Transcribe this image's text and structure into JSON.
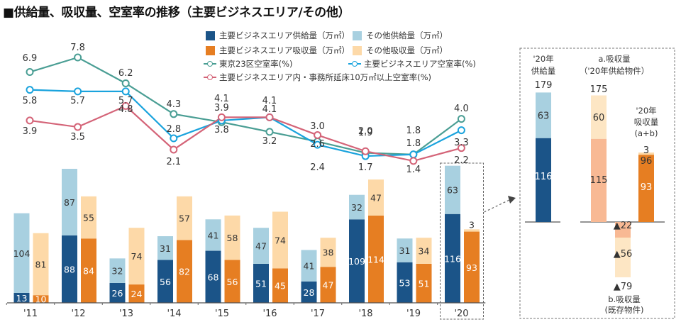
{
  "title": "■供給量、吸収量、空室率の推移（主要ビジネスエリア/その他）",
  "colors": {
    "main_supply": "#1b5488",
    "other_supply": "#a8d0e0",
    "main_absorb": "#e67e22",
    "other_absorb": "#fdd9a8",
    "tokyo23_vacancy": "#4a9e94",
    "main_vacancy": "#1aa3dd",
    "main_large_vacancy": "#d46478",
    "a_main_absorb": "#f8b994",
    "b_light": "#fde6c4"
  },
  "legend": {
    "main_supply": "主要ビジネスエリア供給量（万㎡）",
    "other_supply": "その他供給量（万㎡）",
    "main_absorb": "主要ビジネスエリア吸収量（万㎡）",
    "other_absorb": "その他吸収量（万㎡）",
    "tokyo23_vacancy": "東京23区空室率(%)",
    "main_vacancy": "主要ビジネスエリア空室率(%)",
    "main_large_vacancy": "主要ビジネスエリア内・事務所延床10万㎡以上空室率(%)"
  },
  "chart_data": [
    {
      "type": "bar",
      "subtype": "stacked-grouped",
      "categories": [
        "'11",
        "'12",
        "'13",
        "'14",
        "'15",
        "'16",
        "'17",
        "'18",
        "'19",
        "'20"
      ],
      "series": [
        {
          "name": "主要ビジネスエリア供給量（万㎡）",
          "stack": "supply",
          "values": [
            13,
            88,
            26,
            56,
            68,
            51,
            28,
            109,
            53,
            116
          ]
        },
        {
          "name": "その他供給量（万㎡）",
          "stack": "supply",
          "values": [
            104,
            87,
            32,
            31,
            41,
            47,
            41,
            32,
            31,
            63
          ]
        },
        {
          "name": "主要ビジネスエリア吸収量（万㎡）",
          "stack": "absorb",
          "values": [
            10,
            84,
            24,
            82,
            56,
            45,
            47,
            114,
            51,
            93
          ]
        },
        {
          "name": "その他吸収量（万㎡）",
          "stack": "absorb",
          "values": [
            81,
            55,
            74,
            57,
            58,
            74,
            38,
            47,
            34,
            3
          ]
        }
      ],
      "ylim": [
        0,
        180
      ],
      "highlight_category": "'20"
    },
    {
      "type": "line",
      "categories": [
        "'11",
        "'12",
        "'13",
        "'14",
        "'15",
        "'16",
        "'17",
        "'18",
        "'19",
        "'20"
      ],
      "series": [
        {
          "name": "東京23区空室率(%)",
          "values": [
            6.9,
            7.8,
            6.2,
            4.3,
            3.8,
            3.2,
            2.6,
            1.9,
            1.8,
            4.0
          ]
        },
        {
          "name": "主要ビジネスエリア空室率(%)",
          "values": [
            5.8,
            5.7,
            5.7,
            2.8,
            3.9,
            4.1,
            2.4,
            1.7,
            1.8,
            3.3
          ]
        },
        {
          "name": "主要ビジネスエリア内・事務所延床10万㎡以上空室率(%)",
          "values": [
            3.9,
            3.5,
            4.8,
            2.1,
            4.1,
            4.1,
            3.0,
            2.0,
            1.4,
            2.2
          ]
        }
      ],
      "labels": [
        [
          "6.9",
          "7.8",
          "6.2",
          "4.3",
          "3.8",
          "3.2",
          "2.6",
          "1.9",
          "1.8",
          "4.0"
        ],
        [
          "5.8",
          "5.7",
          "5.7",
          "2.8",
          "3.9",
          "4.1",
          "2.4",
          "1.7",
          "1.8",
          "3.3"
        ],
        [
          "3.9",
          "3.5",
          "4.8",
          "2.1",
          "4.1",
          "4.1",
          "3.0",
          "2.0",
          "1.4",
          "2.2"
        ]
      ]
    },
    {
      "type": "bar",
      "subtype": "breakdown-2020",
      "columns": [
        {
          "header": [
            "'20年",
            "供給量"
          ],
          "total": "179",
          "segments": [
            {
              "label": "116",
              "value": 116,
              "color_key": "main_supply"
            },
            {
              "label": "63",
              "value": 63,
              "color_key": "other_supply"
            }
          ]
        },
        {
          "header": [
            "a.吸収量",
            "（'20年供給物件）"
          ],
          "total": "175",
          "segments": [
            {
              "label": "115",
              "value": 115,
              "color_key": "a_main_absorb"
            },
            {
              "label": "60",
              "value": 60,
              "color_key": "b_light"
            }
          ]
        },
        {
          "header": [
            "'20年",
            "吸収量",
            "(a+b)"
          ],
          "total": "96",
          "segments": [
            {
              "label": "93",
              "value": 93,
              "color_key": "main_absorb"
            },
            {
              "label": "3",
              "value": 3,
              "color_key": "other_absorb"
            }
          ]
        }
      ],
      "negative": {
        "footer": [
          "b.吸収量",
          "(既存物件)"
        ],
        "total": "▲79",
        "segments": [
          {
            "label": "▲22",
            "value": -22,
            "color_key": "a_main_absorb"
          },
          {
            "label": "▲56",
            "value": -56,
            "color_key": "b_light"
          }
        ]
      }
    }
  ]
}
